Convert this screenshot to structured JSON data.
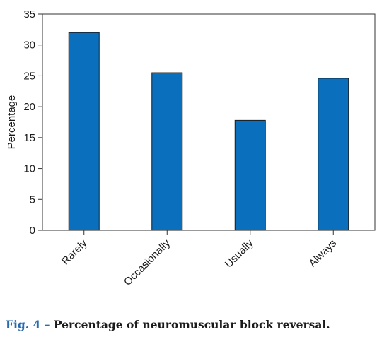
{
  "chart_data": {
    "type": "bar",
    "categories": [
      "Rarely",
      "Occasionally",
      "Usually",
      "Always"
    ],
    "values": [
      32,
      25.5,
      17.8,
      24.6
    ],
    "ylabel": "Percentage",
    "xlabel": "",
    "ylim": [
      0,
      35
    ],
    "yticks": [
      0,
      5,
      10,
      15,
      20,
      25,
      30,
      35
    ],
    "bar_color": "#0a6fbd",
    "grid": false,
    "legend": "none"
  },
  "caption": {
    "label": "Fig. 4 –",
    "text": "Percentage of neuromuscular block reversal.",
    "label_color": "#2a6bb0"
  }
}
